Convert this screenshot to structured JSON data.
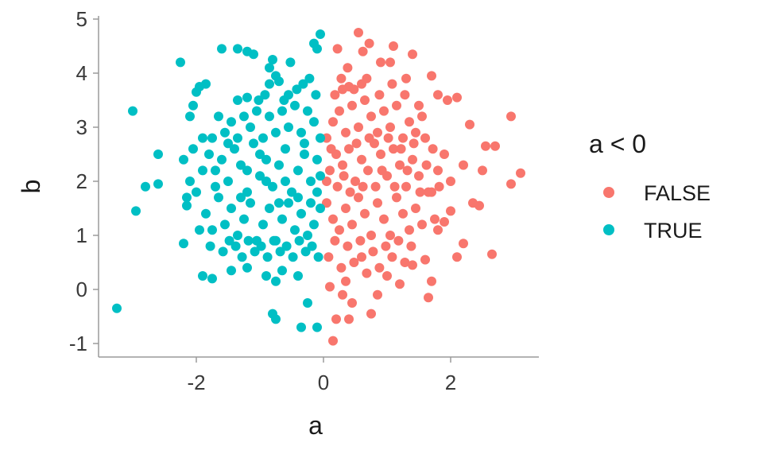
{
  "chart_data": {
    "type": "scatter",
    "title": "",
    "xlabel": "a",
    "ylabel": "b",
    "xlim": [
      -3.4,
      3.4
    ],
    "ylim": [
      -1.25,
      5.1
    ],
    "x_ticks": [
      -2,
      0,
      2
    ],
    "x_tick_labels": [
      "-2",
      "0",
      "2"
    ],
    "y_ticks": [
      -1,
      0,
      1,
      2,
      3,
      4,
      5
    ],
    "y_tick_labels": [
      "-1",
      "0",
      "1",
      "2",
      "3",
      "4",
      "5"
    ],
    "grid": false,
    "legend": {
      "title": "a < 0",
      "position": "right",
      "entries": [
        {
          "label": "FALSE",
          "color": "#F8766D"
        },
        {
          "label": "TRUE",
          "color": "#00BFC4"
        }
      ]
    },
    "series": [
      {
        "name": "FALSE",
        "color": "#F8766D",
        "points": [
          [
            0.55,
            4.75
          ],
          [
            0.22,
            4.45
          ],
          [
            0.72,
            4.55
          ],
          [
            0.62,
            4.4
          ],
          [
            1.1,
            4.5
          ],
          [
            1.4,
            4.35
          ],
          [
            1.05,
            4.2
          ],
          [
            0.9,
            4.2
          ],
          [
            1.7,
            3.95
          ],
          [
            1.3,
            3.9
          ],
          [
            0.4,
            3.75
          ],
          [
            0.6,
            3.8
          ],
          [
            0.3,
            3.7
          ],
          [
            1.8,
            3.6
          ],
          [
            2.1,
            3.55
          ],
          [
            1.5,
            3.4
          ],
          [
            1.95,
            3.5
          ],
          [
            2.3,
            3.05
          ],
          [
            2.95,
            3.2
          ],
          [
            2.55,
            2.65
          ],
          [
            2.7,
            2.65
          ],
          [
            3.1,
            2.15
          ],
          [
            2.95,
            1.95
          ],
          [
            2.5,
            2.2
          ],
          [
            2.45,
            1.55
          ],
          [
            2.35,
            1.6
          ],
          [
            2.65,
            0.65
          ],
          [
            2.1,
            0.6
          ],
          [
            1.8,
            1.1
          ],
          [
            1.6,
            0.55
          ],
          [
            1.7,
            0.15
          ],
          [
            1.65,
            -0.15
          ],
          [
            1.2,
            0.1
          ],
          [
            1.0,
            0.25
          ],
          [
            0.85,
            -0.1
          ],
          [
            0.3,
            -0.1
          ],
          [
            0.45,
            -0.25
          ],
          [
            0.75,
            -0.45
          ],
          [
            0.2,
            -0.55
          ],
          [
            0.4,
            -0.55
          ],
          [
            0.15,
            -0.95
          ],
          [
            0.1,
            0.05
          ],
          [
            0.35,
            0.15
          ],
          [
            0.6,
            0.6
          ],
          [
            1.4,
            0.45
          ],
          [
            1.9,
            1.25
          ],
          [
            2.0,
            1.45
          ],
          [
            2.2,
            0.85
          ],
          [
            0.05,
            2.0
          ],
          [
            0.1,
            2.2
          ],
          [
            0.2,
            2.5
          ],
          [
            0.3,
            2.3
          ],
          [
            0.4,
            2.6
          ],
          [
            0.5,
            2.0
          ],
          [
            0.6,
            2.4
          ],
          [
            0.7,
            2.2
          ],
          [
            0.8,
            2.7
          ],
          [
            0.9,
            2.5
          ],
          [
            1.0,
            2.1
          ],
          [
            1.1,
            2.6
          ],
          [
            1.2,
            2.3
          ],
          [
            1.3,
            1.9
          ],
          [
            1.4,
            2.4
          ],
          [
            1.5,
            2.1
          ],
          [
            1.6,
            2.8
          ],
          [
            1.7,
            1.8
          ],
          [
            1.8,
            2.2
          ],
          [
            1.9,
            2.5
          ],
          [
            2.0,
            2.0
          ],
          [
            2.2,
            2.3
          ],
          [
            0.05,
            1.6
          ],
          [
            0.15,
            1.3
          ],
          [
            0.25,
            1.1
          ],
          [
            0.35,
            1.5
          ],
          [
            0.45,
            1.2
          ],
          [
            0.55,
            1.7
          ],
          [
            0.65,
            1.4
          ],
          [
            0.75,
            1.0
          ],
          [
            0.85,
            1.6
          ],
          [
            0.95,
            1.3
          ],
          [
            1.05,
            1.0
          ],
          [
            1.15,
            1.7
          ],
          [
            1.25,
            1.4
          ],
          [
            1.35,
            1.1
          ],
          [
            1.45,
            1.5
          ],
          [
            1.55,
            1.2
          ],
          [
            1.65,
            1.8
          ],
          [
            1.75,
            1.3
          ],
          [
            0.05,
            2.8
          ],
          [
            0.15,
            3.1
          ],
          [
            0.25,
            3.3
          ],
          [
            0.35,
            2.9
          ],
          [
            0.45,
            3.4
          ],
          [
            0.55,
            3.0
          ],
          [
            0.65,
            3.5
          ],
          [
            0.75,
            3.2
          ],
          [
            0.85,
            2.9
          ],
          [
            0.95,
            3.3
          ],
          [
            1.05,
            3.0
          ],
          [
            1.15,
            3.4
          ],
          [
            1.25,
            2.8
          ],
          [
            1.35,
            3.1
          ],
          [
            1.45,
            2.9
          ],
          [
            1.55,
            3.2
          ],
          [
            0.08,
            0.6
          ],
          [
            0.18,
            0.9
          ],
          [
            0.28,
            0.4
          ],
          [
            0.38,
            0.8
          ],
          [
            0.48,
            0.5
          ],
          [
            0.58,
            0.9
          ],
          [
            0.68,
            0.3
          ],
          [
            0.78,
            0.7
          ],
          [
            0.88,
            0.4
          ],
          [
            0.98,
            0.8
          ],
          [
            1.08,
            0.6
          ],
          [
            1.18,
            0.9
          ],
          [
            1.28,
            0.5
          ],
          [
            1.38,
            0.8
          ],
          [
            0.12,
            2.6
          ],
          [
            0.22,
            1.9
          ],
          [
            0.32,
            2.1
          ],
          [
            0.42,
            1.8
          ],
          [
            0.52,
            2.7
          ],
          [
            0.62,
            1.9
          ],
          [
            0.72,
            2.8
          ],
          [
            0.82,
            1.9
          ],
          [
            0.92,
            2.2
          ],
          [
            1.02,
            2.8
          ],
          [
            1.12,
            1.9
          ],
          [
            1.22,
            2.6
          ],
          [
            1.32,
            2.2
          ],
          [
            1.42,
            2.7
          ],
          [
            1.52,
            1.8
          ],
          [
            1.62,
            2.3
          ],
          [
            1.72,
            2.6
          ],
          [
            1.82,
            1.9
          ],
          [
            0.18,
            3.6
          ],
          [
            0.28,
            3.9
          ],
          [
            0.48,
            3.7
          ],
          [
            0.68,
            3.9
          ],
          [
            0.88,
            3.6
          ],
          [
            1.08,
            3.8
          ],
          [
            1.28,
            3.6
          ],
          [
            0.38,
            4.1
          ]
        ]
      },
      {
        "name": "TRUE",
        "color": "#00BFC4",
        "points": [
          [
            -0.05,
            4.72
          ],
          [
            -0.15,
            4.55
          ],
          [
            -0.1,
            4.45
          ],
          [
            -0.8,
            4.25
          ],
          [
            -0.85,
            4.1
          ],
          [
            -0.75,
            3.95
          ],
          [
            -0.7,
            3.85
          ],
          [
            -0.85,
            3.8
          ],
          [
            -0.55,
            3.6
          ],
          [
            -1.1,
            4.35
          ],
          [
            -1.2,
            4.4
          ],
          [
            -1.35,
            4.45
          ],
          [
            -1.6,
            4.45
          ],
          [
            -2.25,
            4.2
          ],
          [
            -1.85,
            3.8
          ],
          [
            -1.95,
            3.75
          ],
          [
            -2.0,
            3.65
          ],
          [
            -2.05,
            3.4
          ],
          [
            -2.1,
            3.2
          ],
          [
            -1.2,
            3.55
          ],
          [
            -1.35,
            3.5
          ],
          [
            -3.0,
            3.3
          ],
          [
            -2.6,
            2.5
          ],
          [
            -2.8,
            1.9
          ],
          [
            -2.6,
            1.95
          ],
          [
            -2.95,
            1.45
          ],
          [
            -3.25,
            -0.35
          ],
          [
            -2.2,
            0.85
          ],
          [
            -1.75,
            0.2
          ],
          [
            -1.9,
            0.25
          ],
          [
            -1.2,
            0.4
          ],
          [
            -0.9,
            0.25
          ],
          [
            -0.75,
            0.15
          ],
          [
            -0.65,
            0.35
          ],
          [
            -0.4,
            0.25
          ],
          [
            -0.25,
            -0.25
          ],
          [
            -0.8,
            -0.45
          ],
          [
            -0.75,
            -0.55
          ],
          [
            -0.35,
            -0.7
          ],
          [
            -0.1,
            -0.7
          ],
          [
            -1.45,
            0.35
          ],
          [
            -2.15,
            1.7
          ],
          [
            -2.2,
            2.4
          ],
          [
            -2.05,
            2.6
          ],
          [
            -0.05,
            2.1
          ],
          [
            -0.1,
            2.4
          ],
          [
            -0.2,
            2.0
          ],
          [
            -0.3,
            2.5
          ],
          [
            -0.4,
            2.2
          ],
          [
            -0.5,
            1.8
          ],
          [
            -0.6,
            2.6
          ],
          [
            -0.7,
            2.3
          ],
          [
            -0.8,
            1.9
          ],
          [
            -0.9,
            2.4
          ],
          [
            -1.0,
            2.1
          ],
          [
            -1.1,
            2.7
          ],
          [
            -1.2,
            1.8
          ],
          [
            -1.3,
            2.3
          ],
          [
            -1.4,
            2.6
          ],
          [
            -1.5,
            2.0
          ],
          [
            -1.6,
            2.4
          ],
          [
            -1.7,
            1.9
          ],
          [
            -1.8,
            2.5
          ],
          [
            -1.9,
            2.2
          ],
          [
            -2.0,
            1.8
          ],
          [
            -0.05,
            1.5
          ],
          [
            -0.15,
            1.2
          ],
          [
            -0.25,
            1.0
          ],
          [
            -0.35,
            1.4
          ],
          [
            -0.45,
            1.1
          ],
          [
            -0.55,
            1.6
          ],
          [
            -0.65,
            1.3
          ],
          [
            -0.75,
            0.9
          ],
          [
            -0.85,
            1.5
          ],
          [
            -0.95,
            1.2
          ],
          [
            -1.05,
            0.9
          ],
          [
            -1.15,
            1.6
          ],
          [
            -1.25,
            1.3
          ],
          [
            -1.35,
            1.0
          ],
          [
            -1.45,
            1.5
          ],
          [
            -1.55,
            1.2
          ],
          [
            -1.65,
            1.7
          ],
          [
            -1.75,
            1.1
          ],
          [
            -1.85,
            1.4
          ],
          [
            -0.05,
            2.8
          ],
          [
            -0.15,
            3.1
          ],
          [
            -0.25,
            3.3
          ],
          [
            -0.35,
            2.9
          ],
          [
            -0.45,
            3.4
          ],
          [
            -0.55,
            3.0
          ],
          [
            -0.65,
            3.3
          ],
          [
            -0.75,
            2.9
          ],
          [
            -0.85,
            3.2
          ],
          [
            -0.95,
            2.8
          ],
          [
            -1.05,
            3.3
          ],
          [
            -1.15,
            3.0
          ],
          [
            -1.25,
            3.2
          ],
          [
            -1.35,
            2.8
          ],
          [
            -1.45,
            3.1
          ],
          [
            -1.55,
            2.9
          ],
          [
            -1.65,
            3.2
          ],
          [
            -1.75,
            2.8
          ],
          [
            -0.08,
            0.6
          ],
          [
            -0.18,
            0.8
          ],
          [
            -0.28,
            0.7
          ],
          [
            -0.38,
            0.9
          ],
          [
            -0.48,
            0.6
          ],
          [
            -0.58,
            0.8
          ],
          [
            -0.68,
            0.7
          ],
          [
            -0.78,
            0.9
          ],
          [
            -0.88,
            0.6
          ],
          [
            -0.98,
            0.8
          ],
          [
            -1.08,
            0.7
          ],
          [
            -1.18,
            0.9
          ],
          [
            -1.28,
            0.6
          ],
          [
            -1.38,
            0.8
          ],
          [
            -1.48,
            0.9
          ],
          [
            -1.58,
            0.7
          ],
          [
            -1.78,
            0.8
          ],
          [
            -0.12,
            3.6
          ],
          [
            -0.22,
            3.9
          ],
          [
            -0.42,
            3.7
          ],
          [
            -0.62,
            3.5
          ],
          [
            -0.92,
            3.6
          ],
          [
            -1.02,
            3.5
          ],
          [
            -0.52,
            4.2
          ],
          [
            -0.32,
            3.8
          ],
          [
            -0.1,
            1.8
          ],
          [
            -0.2,
            1.6
          ],
          [
            -0.3,
            2.7
          ],
          [
            -0.4,
            1.7
          ],
          [
            -0.6,
            2.0
          ],
          [
            -0.7,
            1.6
          ],
          [
            -0.9,
            2.0
          ],
          [
            -1.0,
            2.5
          ],
          [
            -1.2,
            2.2
          ],
          [
            -1.3,
            1.7
          ],
          [
            -1.5,
            2.7
          ],
          [
            -1.7,
            2.2
          ],
          [
            -1.9,
            2.8
          ],
          [
            -2.1,
            2.0
          ],
          [
            -2.15,
            1.55
          ],
          [
            -1.95,
            1.1
          ]
        ]
      }
    ]
  }
}
